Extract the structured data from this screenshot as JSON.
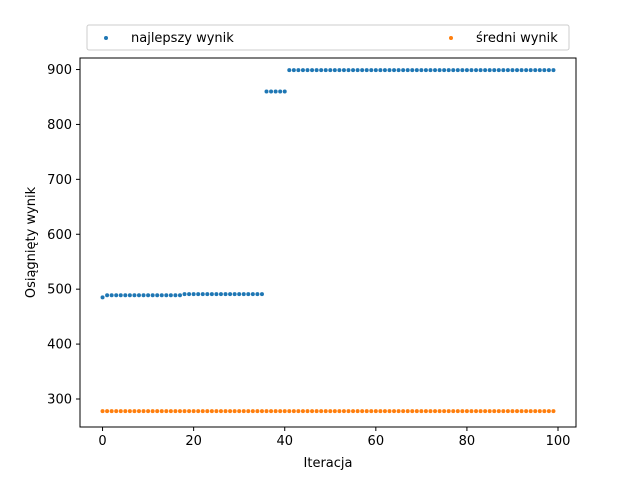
{
  "chart_data": {
    "type": "scatter",
    "xlabel": "Iteracja",
    "ylabel": "Osiągnięty wynik",
    "xlim": [
      -4.95,
      103.95
    ],
    "ylim": [
      249,
      921
    ],
    "x_ticks": [
      0,
      20,
      40,
      60,
      80,
      100
    ],
    "y_ticks": [
      300,
      400,
      500,
      600,
      700,
      800,
      900
    ],
    "grid": false,
    "legend": {
      "placement": "top",
      "columns": 2
    },
    "series": [
      {
        "name": "najlepszy wynik",
        "color": "#1f77b4",
        "segments": [
          {
            "x_from": 0,
            "x_to": 0,
            "y": 485
          },
          {
            "x_from": 1,
            "x_to": 17,
            "y": 489
          },
          {
            "x_from": 18,
            "x_to": 35,
            "y": 491
          },
          {
            "x_from": 36,
            "x_to": 40,
            "y": 860
          },
          {
            "x_from": 41,
            "x_to": 99,
            "y": 899
          }
        ]
      },
      {
        "name": "średni wynik",
        "color": "#ff7f0e",
        "segments": [
          {
            "x_from": 0,
            "x_to": 99,
            "y": 278
          }
        ]
      }
    ]
  }
}
